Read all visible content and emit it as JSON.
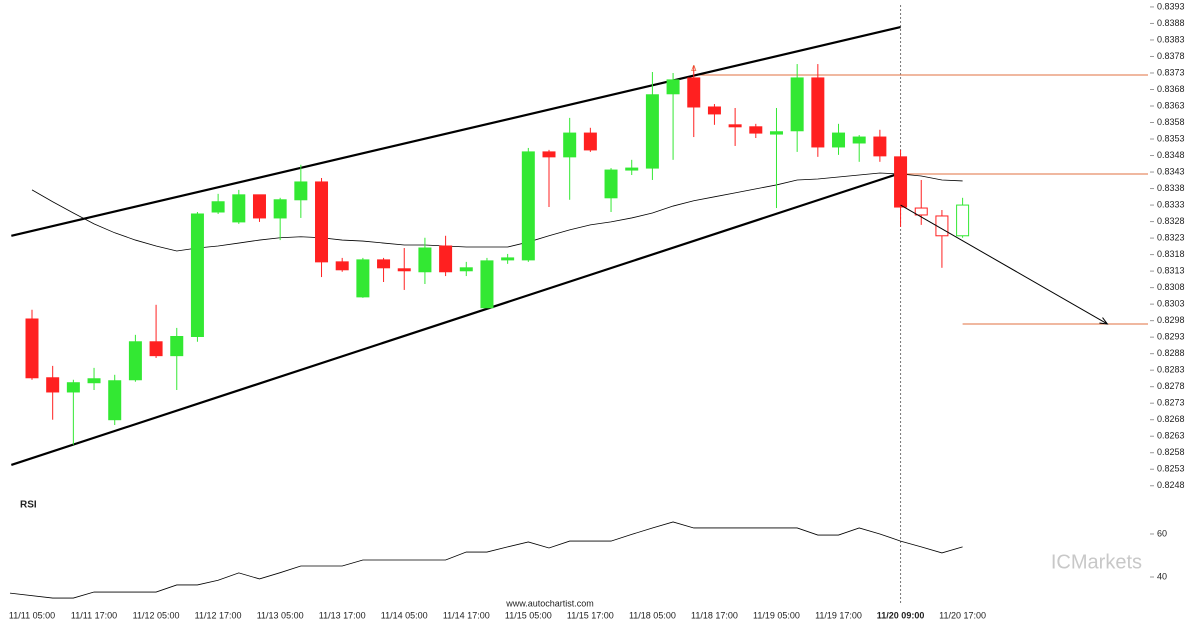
{
  "chart_data": {
    "type": "candlestick",
    "categories": [
      "11/11 05:00",
      null,
      null,
      "11/11 17:00",
      null,
      null,
      "11/12 05:00",
      null,
      null,
      "11/12 17:00",
      null,
      null,
      "11/13 05:00",
      null,
      null,
      "11/13 17:00",
      null,
      null,
      "11/14 05:00",
      null,
      null,
      "11/14 17:00",
      null,
      null,
      "11/15 05:00",
      null,
      null,
      "11/15 17:00",
      null,
      null,
      "11/18 05:00",
      null,
      null,
      "11/18 17:00",
      null,
      null,
      "11/19 05:00",
      null,
      null,
      "11/19 17:00",
      null,
      null,
      "11/20 09:00",
      null,
      null,
      "11/20 17:00"
    ],
    "open": [
      0.82985,
      0.82807,
      0.82764,
      0.82792,
      0.8268,
      0.82801,
      0.82916,
      0.82874,
      0.82932,
      0.83309,
      0.83279,
      0.83361,
      0.83291,
      0.83346,
      0.834,
      0.83158,
      0.83052,
      0.83164,
      0.83137,
      0.83128,
      0.83206,
      0.83131,
      0.83019,
      0.83164,
      0.83164,
      0.83491,
      0.83476,
      0.83548,
      0.83352,
      0.83436,
      0.83442,
      0.83667,
      0.83715,
      0.83627,
      0.83573,
      0.83567,
      0.83545,
      0.83555,
      0.83715,
      0.83506,
      0.83518,
      0.83536,
      0.83476,
      0.83321,
      0.83297,
      0.83237
    ],
    "high": [
      0.83013,
      0.82843,
      0.82801,
      0.82837,
      0.82816,
      0.82937,
      0.83028,
      0.82958,
      0.83309,
      0.83364,
      0.83376,
      0.83361,
      0.83352,
      0.83452,
      0.83412,
      0.8317,
      0.8317,
      0.8317,
      0.832,
      0.83231,
      0.83237,
      0.83158,
      0.8317,
      0.83182,
      0.83503,
      0.83497,
      0.83594,
      0.83564,
      0.83442,
      0.83467,
      0.83733,
      0.8373,
      0.83751,
      0.83636,
      0.83624,
      0.83576,
      0.83624,
      0.83757,
      0.83757,
      0.83576,
      0.83542,
      0.83558,
      0.83497,
      0.83406,
      0.83315,
      0.83352
    ],
    "low": [
      0.82801,
      0.8268,
      0.82604,
      0.8277,
      0.82664,
      0.82795,
      0.82867,
      0.8277,
      0.82916,
      0.83303,
      0.83273,
      0.83279,
      0.83224,
      0.83291,
      0.83112,
      0.83128,
      0.83049,
      0.83097,
      0.83073,
      0.83091,
      0.83115,
      0.83115,
      0.83019,
      0.83152,
      0.83158,
      0.83324,
      0.83346,
      0.83491,
      0.83309,
      0.83421,
      0.83406,
      0.83467,
      0.83536,
      0.83573,
      0.83509,
      0.83533,
      0.83321,
      0.83491,
      0.83476,
      0.83482,
      0.83461,
      0.83461,
      0.83264,
      0.8327,
      0.8314,
      0.83231
    ],
    "close": [
      0.82807,
      0.82764,
      0.82792,
      0.82804,
      0.82798,
      0.82916,
      0.82874,
      0.82932,
      0.83303,
      0.8334,
      0.83361,
      0.83291,
      0.83346,
      0.834,
      0.83158,
      0.83134,
      0.83164,
      0.8314,
      0.83131,
      0.832,
      0.83128,
      0.8314,
      0.83161,
      0.8317,
      0.83491,
      0.83476,
      0.83548,
      0.83497,
      0.83436,
      0.83442,
      0.83664,
      0.83709,
      0.83627,
      0.83606,
      0.83567,
      0.83548,
      0.83552,
      0.83715,
      0.83506,
      0.83548,
      0.83536,
      0.83479,
      0.83324,
      0.833,
      0.83237,
      0.8333
    ],
    "up_color": "#33e833",
    "down_color": "#ff2020",
    "hollow_from": 43,
    "ylim": [
      0.82452,
      0.83951
    ],
    "yticks": [
      0.8248,
      0.8253,
      0.8258,
      0.8263,
      0.8268,
      0.8273,
      0.8278,
      0.8283,
      0.8288,
      0.8293,
      0.8298,
      0.8303,
      0.8308,
      0.8313,
      0.8318,
      0.8323,
      0.8328,
      0.8333,
      0.8338,
      0.8343,
      0.8348,
      0.8353,
      0.8358,
      0.8363,
      0.8368,
      0.8373,
      0.8378,
      0.8383,
      0.8388,
      0.8393
    ],
    "moving_average": {
      "color": "#000000",
      "values": [
        0.83376,
        0.8334,
        0.83306,
        0.83273,
        0.83246,
        0.83224,
        0.83206,
        0.83191,
        0.832,
        0.83206,
        0.83215,
        0.83224,
        0.83231,
        0.83234,
        0.83231,
        0.83224,
        0.83221,
        0.83215,
        0.83209,
        0.83209,
        0.83206,
        0.83203,
        0.83203,
        0.83203,
        0.83218,
        0.83237,
        0.83255,
        0.8327,
        0.83279,
        0.83291,
        0.83306,
        0.83327,
        0.83343,
        0.83355,
        0.83367,
        0.83379,
        0.83391,
        0.83406,
        0.83409,
        0.83415,
        0.83421,
        0.83427,
        0.83424,
        0.83418,
        0.83406,
        0.83403
      ]
    },
    "trendlines": [
      {
        "start": {
          "index": -1,
          "price": 0.83237
        },
        "end": {
          "index": 42,
          "price": 0.83869
        }
      },
      {
        "start": {
          "index": -1,
          "price": 0.82543
        },
        "end": {
          "index": 42,
          "price": 0.83427
        }
      }
    ],
    "arrow": {
      "start": {
        "index": 42,
        "price": 0.8333
      },
      "end": {
        "index": 52,
        "price": 0.8297
      }
    },
    "levels": [
      {
        "price": 0.83724,
        "from_index": 32,
        "color": "#e07040"
      },
      {
        "price": 0.83424,
        "from_index": 42,
        "color": "#e07040"
      },
      {
        "price": 0.8297,
        "from_index": 45,
        "color": "#e07040"
      }
    ],
    "marker_index": 42,
    "rsi": {
      "title": "RSI",
      "ylim": [
        29.3,
        75.8
      ],
      "yticks": [
        40,
        60
      ],
      "values": [
        32.5,
        30.2,
        30.2,
        33.0,
        33.0,
        33.0,
        33.0,
        36.3,
        36.3,
        38.5,
        41.9,
        39.1,
        42.0,
        45.1,
        45.1,
        45.1,
        47.9,
        47.9,
        47.9,
        47.9,
        47.9,
        51.6,
        51.6,
        54.0,
        56.3,
        53.5,
        56.7,
        56.7,
        56.7,
        59.8,
        62.8,
        65.6,
        62.8,
        62.8,
        62.8,
        62.8,
        62.8,
        62.8,
        59.5,
        59.5,
        62.8,
        60.0,
        56.7,
        54.0,
        51.2,
        54.0
      ]
    },
    "watermark": "www.autochartist.com",
    "logo": "ICMarkets"
  }
}
